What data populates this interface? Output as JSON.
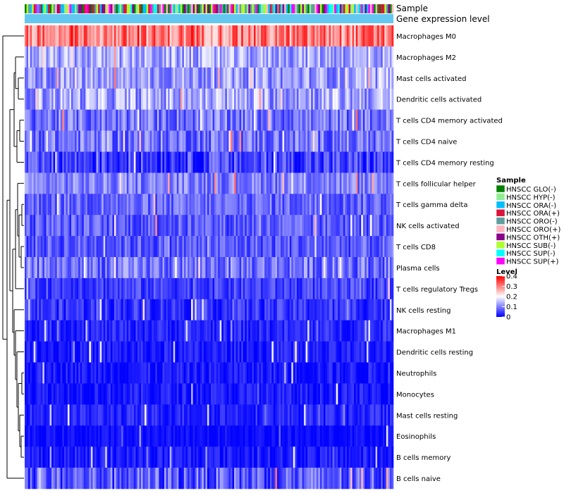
{
  "chart_data": {
    "type": "heatmap",
    "title": "",
    "annotation_tracks": [
      "Sample",
      "Gene expression level"
    ],
    "rows": [
      {
        "label": "Macrophages M0",
        "mean": 0.3,
        "spread": 0.08
      },
      {
        "label": "Macrophages M2",
        "mean": 0.13,
        "spread": 0.06
      },
      {
        "label": "Mast cells activated",
        "mean": 0.12,
        "spread": 0.06
      },
      {
        "label": "Dendritic cells activated",
        "mean": 0.13,
        "spread": 0.07
      },
      {
        "label": "T cells CD4 memory activated",
        "mean": 0.09,
        "spread": 0.06
      },
      {
        "label": "T cells CD4 naive",
        "mean": 0.09,
        "spread": 0.06
      },
      {
        "label": "T cells CD4 memory resting",
        "mean": 0.05,
        "spread": 0.06
      },
      {
        "label": "T cells follicular helper",
        "mean": 0.1,
        "spread": 0.05
      },
      {
        "label": "T cells gamma delta",
        "mean": 0.08,
        "spread": 0.05
      },
      {
        "label": "NK cells activated",
        "mean": 0.07,
        "spread": 0.05
      },
      {
        "label": "T cells CD8",
        "mean": 0.07,
        "spread": 0.05
      },
      {
        "label": "Plasma cells",
        "mean": 0.09,
        "spread": 0.06
      },
      {
        "label": "T cells regulatory  Tregs",
        "mean": 0.05,
        "spread": 0.04
      },
      {
        "label": "NK cells resting",
        "mean": 0.04,
        "spread": 0.04
      },
      {
        "label": "Macrophages M1",
        "mean": 0.03,
        "spread": 0.03
      },
      {
        "label": "Dendritic cells resting",
        "mean": 0.02,
        "spread": 0.03
      },
      {
        "label": "Neutrophils",
        "mean": 0.02,
        "spread": 0.03
      },
      {
        "label": "Monocytes",
        "mean": 0.02,
        "spread": 0.03
      },
      {
        "label": "Mast cells resting",
        "mean": 0.03,
        "spread": 0.03
      },
      {
        "label": "Eosinophils",
        "mean": 0.01,
        "spread": 0.02
      },
      {
        "label": "B cells memory",
        "mean": 0.02,
        "spread": 0.03
      },
      {
        "label": "B cells naive",
        "mean": 0.07,
        "spread": 0.07
      }
    ],
    "n_samples": 206,
    "color_scale": {
      "title": "Level",
      "min": 0,
      "max": 0.4,
      "ticks": [
        "0.4",
        "0.3",
        "0.2",
        "0.1",
        "0"
      ],
      "low_color": "#0000ff",
      "mid_color": "#ffffff",
      "high_color": "#ff0000"
    },
    "legend": {
      "title": "Sample",
      "items": [
        {
          "label": "HNSCC GLO(-)",
          "color": "#008000"
        },
        {
          "label": "HNSCC HYP(-)",
          "color": "#90ee90"
        },
        {
          "label": "HNSCC ORA(-)",
          "color": "#00bfff"
        },
        {
          "label": "HNSCC ORA(+)",
          "color": "#dc143c"
        },
        {
          "label": "HNSCC ORO(-)",
          "color": "#5f9ea0"
        },
        {
          "label": "HNSCC ORO(+)",
          "color": "#ffb6c1"
        },
        {
          "label": "HNSCC OTH(+)",
          "color": "#8b008b"
        },
        {
          "label": "HNSCC SUB(-)",
          "color": "#adff2f"
        },
        {
          "label": "HNSCC SUP(-)",
          "color": "#00ffff"
        },
        {
          "label": "HNSCC SUP(+)",
          "color": "#ff00ff"
        }
      ]
    },
    "expression_track_color": "#63c7f0"
  }
}
